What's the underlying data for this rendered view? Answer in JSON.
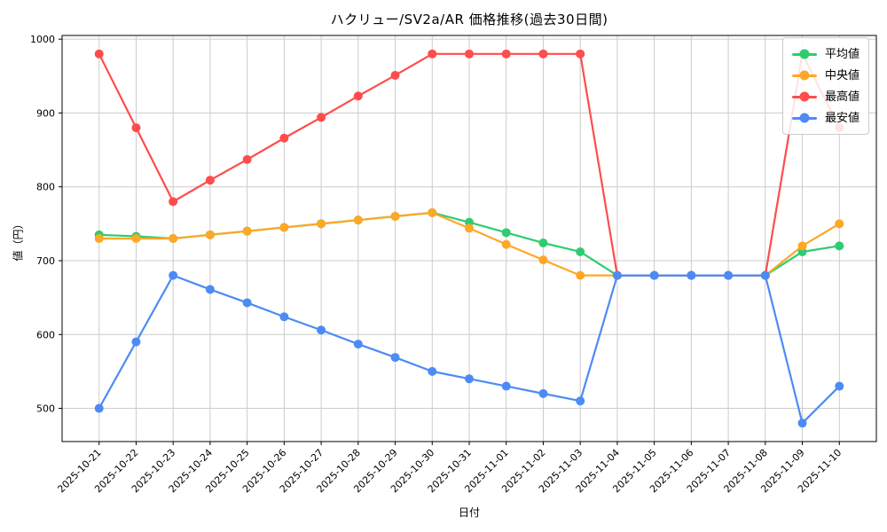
{
  "chart_data": {
    "type": "line",
    "title": "ハクリュー/SV2a/AR 価格推移(過去30日間)",
    "xlabel": "日付",
    "ylabel": "値（円）",
    "grid": true,
    "legend_position": "upper right",
    "ylim": [
      455,
      1005
    ],
    "yticks": [
      500,
      600,
      700,
      800,
      900,
      1000
    ],
    "x_dates": [
      "2025-10-21",
      "2025-10-22",
      "2025-10-23",
      "2025-10-24",
      "2025-10-25",
      "2025-10-26",
      "2025-10-27",
      "2025-10-28",
      "2025-10-29",
      "2025-10-30",
      "2025-10-31",
      "2025-11-01",
      "2025-11-02",
      "2025-11-03",
      "2025-11-04",
      "2025-11-05",
      "2025-11-06",
      "2025-11-07",
      "2025-11-08",
      "2025-11-09",
      "2025-11-10"
    ],
    "series": [
      {
        "key": "average",
        "name": "平均値",
        "color": "#2ecc71",
        "values": [
          735,
          733,
          730,
          735,
          740,
          745,
          750,
          755,
          760,
          765,
          752,
          738,
          724,
          712,
          680,
          680,
          680,
          680,
          680,
          712,
          720
        ]
      },
      {
        "key": "median",
        "name": "中央値",
        "color": "#ffa726",
        "values": [
          730,
          730,
          730,
          735,
          740,
          745,
          750,
          755,
          760,
          765,
          744,
          722,
          701,
          680,
          680,
          680,
          680,
          680,
          680,
          720,
          750
        ]
      },
      {
        "key": "highest",
        "name": "最高値",
        "color": "#ff4c4c",
        "values": [
          980,
          880,
          780,
          809,
          837,
          866,
          894,
          923,
          951,
          980,
          980,
          980,
          980,
          980,
          680,
          680,
          680,
          680,
          680,
          980,
          880
        ]
      },
      {
        "key": "lowest",
        "name": "最安値",
        "color": "#4c8bf5",
        "values": [
          500,
          590,
          680,
          661,
          643,
          624,
          606,
          587,
          569,
          550,
          540,
          530,
          520,
          510,
          680,
          680,
          680,
          680,
          680,
          480,
          530
        ]
      }
    ],
    "colors": {
      "grid": "#cccccc",
      "spine": "#000000",
      "background": "#ffffff"
    }
  }
}
